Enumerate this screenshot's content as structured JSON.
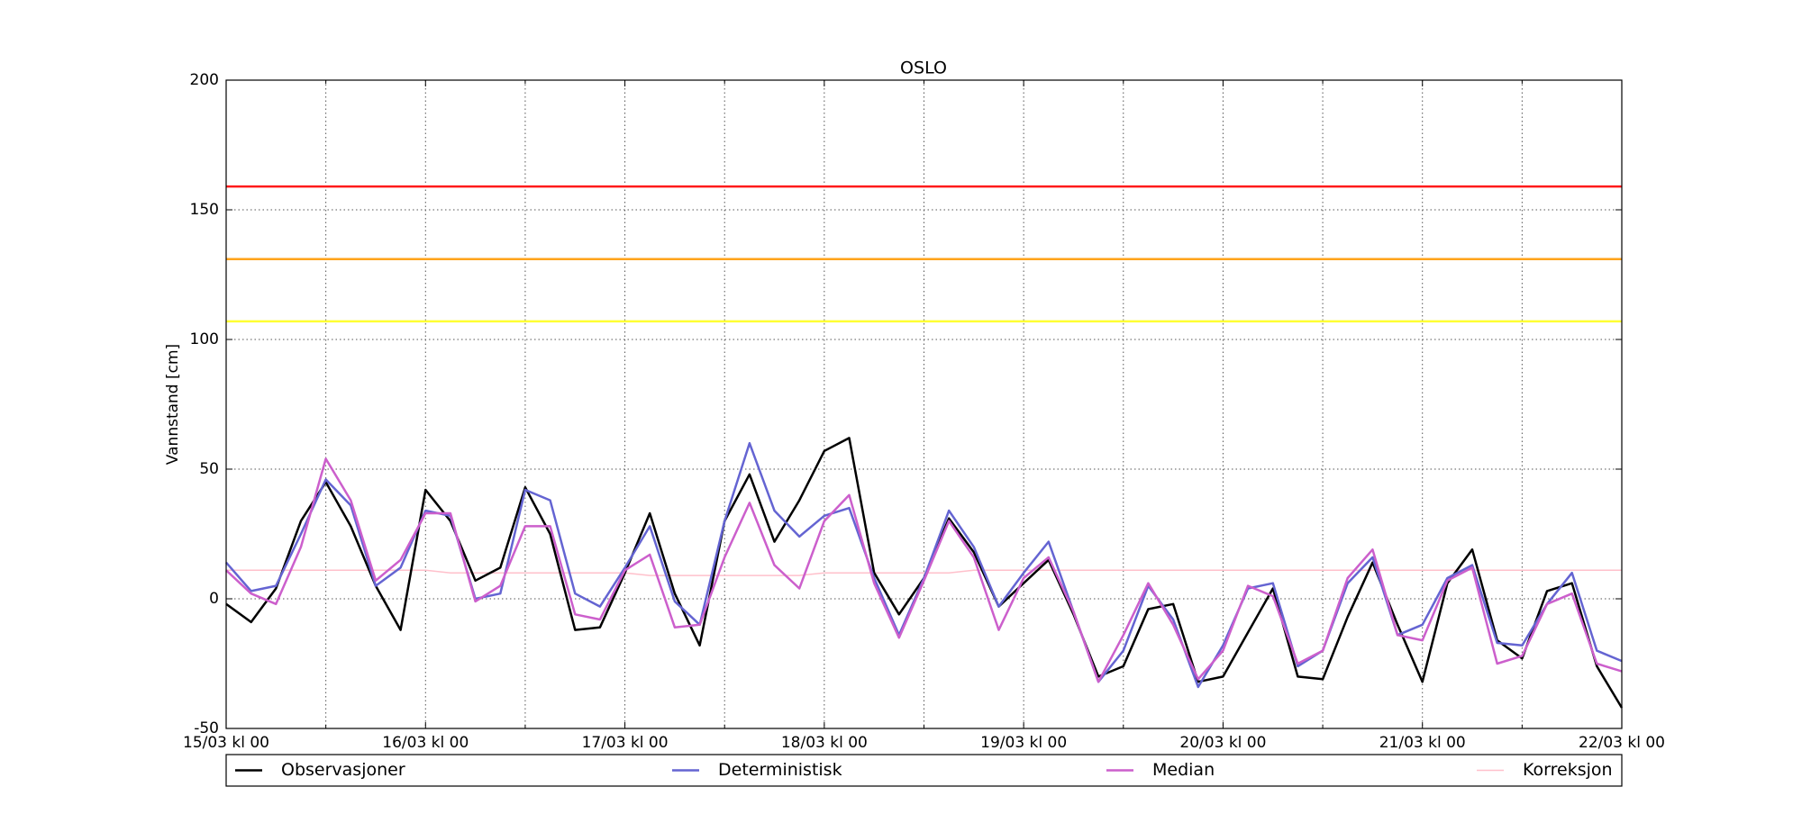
{
  "chart_data": {
    "type": "line",
    "title": "OSLO",
    "y_label": "Vannstand [cm]",
    "xlim": [
      0,
      168
    ],
    "ylim": [
      -50,
      200
    ],
    "yticks": [
      -50,
      0,
      50,
      100,
      150,
      200
    ],
    "xticks": [
      {
        "value": 0,
        "label": "15/03 kl 00"
      },
      {
        "value": 24,
        "label": "16/03 kl 00"
      },
      {
        "value": 48,
        "label": "17/03 kl 00"
      },
      {
        "value": 72,
        "label": "18/03 kl 00"
      },
      {
        "value": 96,
        "label": "19/03 kl 00"
      },
      {
        "value": 120,
        "label": "20/03 kl 00"
      },
      {
        "value": 144,
        "label": "21/03 kl 00"
      },
      {
        "value": 168,
        "label": "22/03 kl 00"
      }
    ],
    "x_minor_ticks": [
      12,
      36,
      60,
      84,
      108,
      132,
      156
    ],
    "grid": true,
    "legend": "bottom",
    "thresholds": [
      {
        "value": 159,
        "color": "#ff1a1a"
      },
      {
        "value": 131,
        "color": "#ffa31a"
      },
      {
        "value": 107,
        "color": "#ffff33"
      }
    ],
    "x": [
      0,
      3,
      6,
      9,
      12,
      15,
      18,
      21,
      24,
      27,
      30,
      33,
      36,
      39,
      42,
      45,
      48,
      51,
      54,
      57,
      60,
      63,
      66,
      69,
      72,
      75,
      78,
      81,
      84,
      87,
      90,
      93,
      96,
      99,
      102,
      105,
      108,
      111,
      114,
      117,
      120,
      123,
      126,
      129,
      132,
      135,
      138,
      141,
      144,
      147,
      150,
      153,
      156,
      159,
      162,
      165,
      168
    ],
    "series": [
      {
        "name": "Observasjoner",
        "color": "#000000",
        "values": [
          -2,
          -9,
          4,
          30,
          45,
          28,
          5,
          -12,
          42,
          30,
          7,
          12,
          43,
          25,
          -12,
          -11,
          10,
          33,
          2,
          -18,
          30,
          48,
          22,
          38,
          57,
          62,
          10,
          -6,
          8,
          31,
          18,
          -3,
          6,
          15,
          -6,
          -30,
          -26,
          -4,
          -2,
          -32,
          -30,
          -13,
          4,
          -30,
          -31,
          -7,
          14,
          -10,
          -32,
          6,
          19,
          -16,
          -23,
          3,
          6,
          -26,
          -42
        ]
      },
      {
        "name": "Deterministisk",
        "color": "#6464d2",
        "values": [
          14,
          3,
          5,
          25,
          46,
          36,
          5,
          12,
          34,
          32,
          0,
          2,
          42,
          38,
          2,
          -3,
          12,
          28,
          -1,
          -10,
          30,
          60,
          34,
          24,
          32,
          35,
          8,
          -14,
          8,
          34,
          20,
          -3,
          10,
          22,
          -5,
          -32,
          -20,
          5,
          -8,
          -34,
          -18,
          4,
          6,
          -26,
          -20,
          6,
          16,
          -14,
          -10,
          8,
          13,
          -17,
          -18,
          -2,
          10,
          -20,
          -24
        ]
      },
      {
        "name": "Median",
        "color": "#cc5fcc",
        "values": [
          11,
          2,
          -2,
          20,
          54,
          38,
          7,
          15,
          33,
          33,
          -1,
          5,
          28,
          28,
          -6,
          -8,
          11,
          17,
          -11,
          -10,
          16,
          37,
          13,
          4,
          30,
          40,
          6,
          -15,
          7,
          30,
          16,
          -12,
          8,
          16,
          -5,
          -32,
          -14,
          6,
          -10,
          -31,
          -20,
          5,
          1,
          -25,
          -20,
          8,
          19,
          -14,
          -16,
          7,
          12,
          -25,
          -22,
          -2,
          2,
          -25,
          -28
        ]
      },
      {
        "name": "Korreksjon",
        "color": "#ffc0cb",
        "values": [
          11,
          11,
          11,
          11,
          11,
          11,
          11,
          11,
          11,
          10,
          10,
          10,
          10,
          10,
          10,
          10,
          10,
          9,
          9,
          9,
          9,
          9,
          9,
          9,
          10,
          10,
          10,
          10,
          10,
          10,
          11,
          11,
          11,
          11,
          11,
          11,
          11,
          11,
          11,
          11,
          11,
          11,
          11,
          11,
          11,
          11,
          11,
          11,
          11,
          11,
          11,
          11,
          11,
          11,
          11,
          11,
          11
        ]
      }
    ]
  }
}
